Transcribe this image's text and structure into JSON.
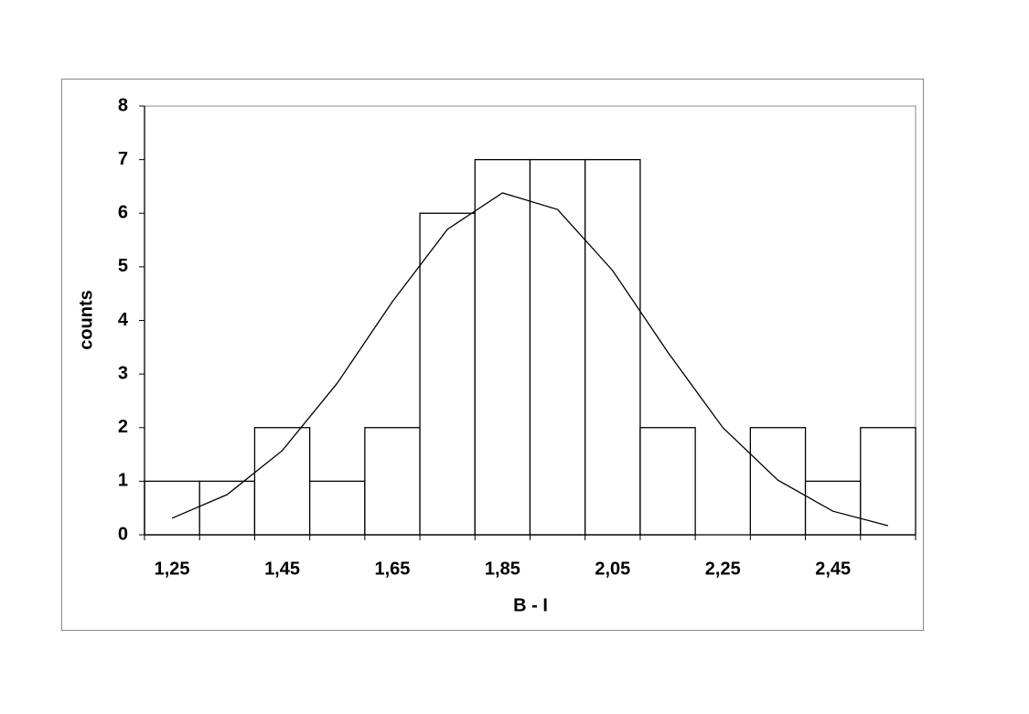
{
  "chart_data": {
    "type": "histogram",
    "xlabel": "B - I",
    "ylabel": "counts",
    "bins": [
      1.2,
      1.3,
      1.4,
      1.5,
      1.6,
      1.7,
      1.8,
      1.9,
      2.0,
      2.1,
      2.2,
      2.3,
      2.4,
      2.5,
      2.6
    ],
    "values": [
      1,
      1,
      2,
      1,
      2,
      6,
      7,
      7,
      7,
      2,
      0,
      2,
      1,
      2
    ],
    "color": "#ffffff",
    "edgecolor": "#000000",
    "fit": {
      "x": [
        1.25,
        1.35,
        1.45,
        1.55,
        1.65,
        1.75,
        1.85,
        1.95,
        2.05,
        2.15,
        2.25,
        2.35,
        2.45,
        2.55
      ],
      "values": [
        0.31,
        0.75,
        1.57,
        2.83,
        4.35,
        5.7,
        6.38,
        6.07,
        4.93,
        3.41,
        2.0,
        1.02,
        0.44,
        0.17
      ],
      "color": "#000000"
    },
    "xlim": [
      1.2,
      2.6
    ],
    "xticks": [
      {
        "value": 1.25,
        "label": "1,25"
      },
      {
        "value": 1.45,
        "label": "1,45"
      },
      {
        "value": 1.65,
        "label": "1,65"
      },
      {
        "value": 1.85,
        "label": "1,85"
      },
      {
        "value": 2.05,
        "label": "2,05"
      },
      {
        "value": 2.25,
        "label": "2,25"
      },
      {
        "value": 2.45,
        "label": "2,45"
      }
    ],
    "ylim": [
      0,
      8
    ],
    "yticks": [
      0,
      1,
      2,
      3,
      4,
      5,
      6,
      7,
      8
    ]
  }
}
